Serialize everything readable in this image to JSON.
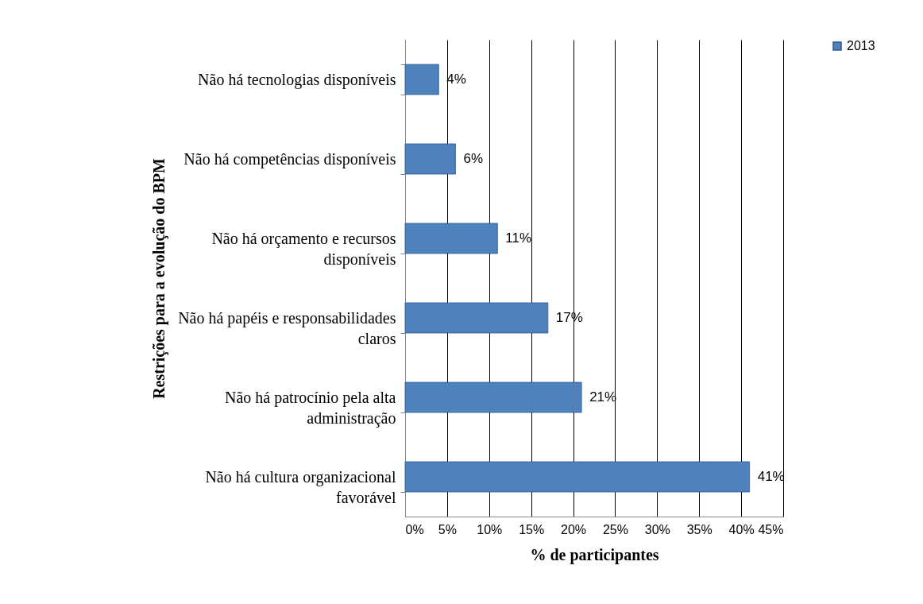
{
  "chart_data": {
    "type": "bar",
    "orientation": "horizontal",
    "ylabel": "Restrições para a evolução do BPM",
    "xlabel": "% de participantes",
    "categories": [
      "Não há tecnologias disponíveis",
      "Não há competências disponíveis",
      "Não há orçamento e recursos disponíveis",
      "Não há papéis e responsabilidades claros",
      "Não há patrocínio pela alta administração",
      "Não há cultura organizacional favorável"
    ],
    "series": [
      {
        "name": "2013",
        "color": "#4f81bd",
        "values": [
          4,
          6,
          11,
          17,
          21,
          41
        ],
        "value_labels": [
          "4%",
          "6%",
          "11%",
          "17%",
          "21%",
          "41%"
        ]
      }
    ],
    "xlim": [
      0,
      45
    ],
    "xticks": [
      {
        "value": 0,
        "label": "0%"
      },
      {
        "value": 5,
        "label": "5%"
      },
      {
        "value": 10,
        "label": "10%"
      },
      {
        "value": 15,
        "label": "15%"
      },
      {
        "value": 20,
        "label": "20%"
      },
      {
        "value": 25,
        "label": "25%"
      },
      {
        "value": 30,
        "label": "30%"
      },
      {
        "value": 35,
        "label": "35%"
      },
      {
        "value": 40,
        "label": "40%"
      },
      {
        "value": 45,
        "label": "45%"
      }
    ],
    "grid": "x",
    "legend": "right"
  }
}
